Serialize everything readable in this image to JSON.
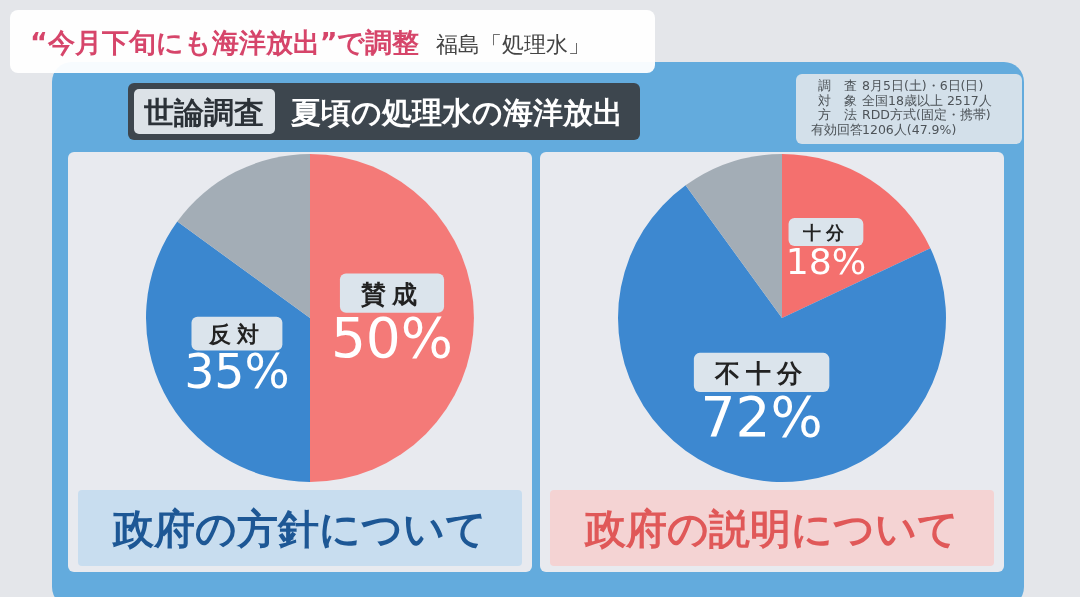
{
  "chart_data": [
    {
      "type": "other",
      "title": "“今月下旬にも海洋放出”で調整",
      "subtitle": "福島「処理水」",
      "annotations": [
        "世論調査",
        "夏頃の処理水の海洋放出",
        "調　査",
        "8月5日(土)・6日(日)",
        "対　象",
        "全国18歳以上 2517人",
        "方　法",
        "RDD方式(固定・携帯)",
        "有効回答",
        "1206人(47.9%)"
      ]
    },
    {
      "type": "pie",
      "title": "政府の方針について",
      "categories": [
        "賛成",
        "反対",
        null
      ],
      "values": [
        50,
        35,
        15
      ],
      "colors": [
        "#f47a78",
        "#3b87cf",
        "#a3adb6"
      ],
      "value_labels": [
        "50%",
        "35%",
        null
      ]
    },
    {
      "type": "pie",
      "title": "政府の説明について",
      "categories": [
        "十分",
        "不十分",
        null
      ],
      "values": [
        18,
        72,
        10
      ],
      "colors": [
        "#f4706e",
        "#3d88d0",
        "#a3adb6"
      ],
      "value_labels": [
        "18%",
        "72%",
        null
      ]
    }
  ]
}
